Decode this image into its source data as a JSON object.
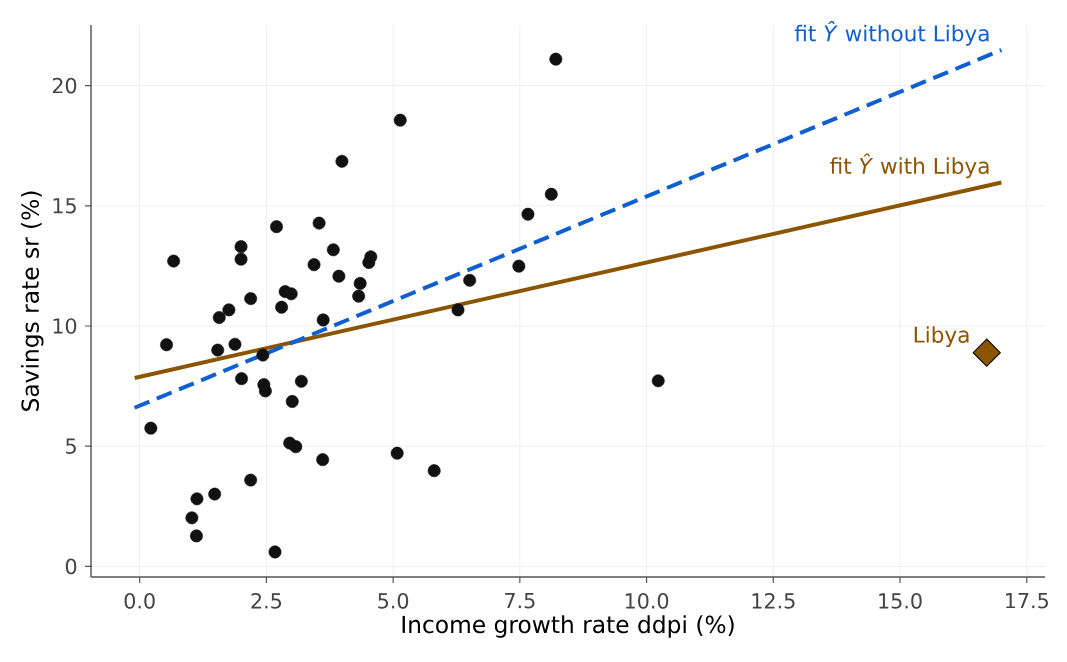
{
  "chart_data": {
    "type": "scatter",
    "xlabel": "Income growth rate ddpi (%)",
    "ylabel": "Savings rate sr (%)",
    "xlim": [
      -0.96,
      17.86
    ],
    "ylim": [
      -0.44,
      22.52
    ],
    "xticks": [
      {
        "value": 0,
        "label": "0.0"
      },
      2.5,
      {
        "value": 5,
        "label": "5.0"
      },
      7.5,
      {
        "value": 10,
        "label": "10.0"
      },
      12.5,
      {
        "value": 15,
        "label": "15.0"
      },
      17.5
    ],
    "yticks": [
      0,
      5,
      10,
      15,
      20
    ],
    "grid": true,
    "series": [
      {
        "color": "#111111",
        "marker": "circle",
        "x": [
          2.87,
          3.93,
          3.82,
          0.22,
          4.56,
          2.43,
          2.67,
          6.51,
          3.08,
          2.8,
          3.99,
          2.19,
          4.32,
          4.52,
          3.44,
          6.28,
          1.48,
          3.19,
          1.12,
          1.54,
          2.99,
          3.54,
          8.21,
          5.81,
          1.57,
          8.12,
          3.62,
          7.66,
          1.76,
          2.48,
          3.61,
          1.03,
          0.67,
          2.0,
          7.48,
          2.19,
          2.0,
          4.35,
          3.01,
          2.7,
          2.96,
          1.13,
          2.01,
          2.45,
          0.53,
          5.14,
          10.23,
          1.88,
          5.08
        ],
        "values": [
          11.43,
          12.07,
          13.17,
          5.75,
          12.88,
          8.79,
          0.6,
          11.9,
          4.98,
          10.78,
          16.85,
          3.59,
          11.24,
          12.64,
          12.55,
          10.67,
          3.01,
          7.7,
          1.27,
          9.0,
          11.34,
          14.28,
          21.1,
          3.98,
          10.35,
          15.48,
          10.25,
          14.65,
          10.67,
          7.3,
          4.44,
          2.02,
          12.7,
          12.78,
          12.49,
          11.14,
          13.3,
          11.77,
          6.86,
          14.13,
          5.13,
          2.81,
          7.81,
          7.56,
          9.22,
          18.56,
          7.72,
          9.24,
          4.71
        ]
      },
      {
        "name": "fit *Ŷ* with Libya",
        "type": "line",
        "line_style": "solid",
        "marker": "none",
        "color": "#8b5500",
        "x": [
          -0.1,
          17.0
        ],
        "values": [
          7.84,
          15.97
        ]
      },
      {
        "name": "fit *Ŷ* without Libya",
        "type": "line",
        "line_style": "dashed",
        "marker": "none",
        "color": "#0f5fd0",
        "x": [
          -0.1,
          17.0
        ],
        "values": [
          6.6,
          21.48
        ]
      },
      {
        "name": "Libya",
        "type": "scatter",
        "marker": "diamond",
        "color": "#8b5500",
        "x": [
          16.71
        ],
        "values": [
          8.89
        ]
      }
    ]
  }
}
